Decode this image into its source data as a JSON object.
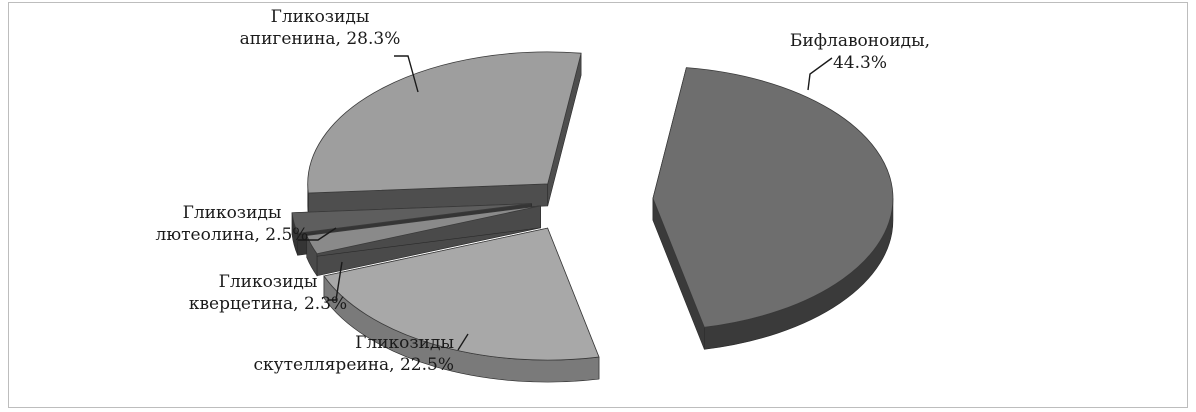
{
  "chart_data": {
    "type": "pie",
    "style": "3d-exploded",
    "slices": [
      {
        "name": "Бифлавоноиды",
        "value": 44.3,
        "label_lines": [
          "Бифлавоноиды,",
          "44.3%"
        ],
        "top_color": "#6e6e6e",
        "side_color": "#3a3a3a"
      },
      {
        "name": "Гликозиды скутеллиреина",
        "value": 22.5,
        "label_lines": [
          "Гликозиды",
          "скутелляреина, 22.5%"
        ],
        "top_color": "#a8a8a8",
        "side_color": "#7a7a7a"
      },
      {
        "name": "Гликозиды кверцетина",
        "value": 2.3,
        "label_lines": [
          "Гликозиды",
          "кверцетина, 2.3%"
        ],
        "top_color": "#8a8a8a",
        "side_color": "#4a4a4a"
      },
      {
        "name": "Гликозиды лютеолина",
        "value": 2.5,
        "label_lines": [
          "Гликозиды",
          "лютеолина, 2.5%"
        ],
        "top_color": "#5e5e5e",
        "side_color": "#353535"
      },
      {
        "name": "Гликозиды апигенина",
        "value": 28.3,
        "label_lines": [
          "Гликозиды",
          "апигенина, 28.3%"
        ],
        "top_color": "#9e9e9e",
        "side_color": "#4e4e4e"
      }
    ]
  }
}
